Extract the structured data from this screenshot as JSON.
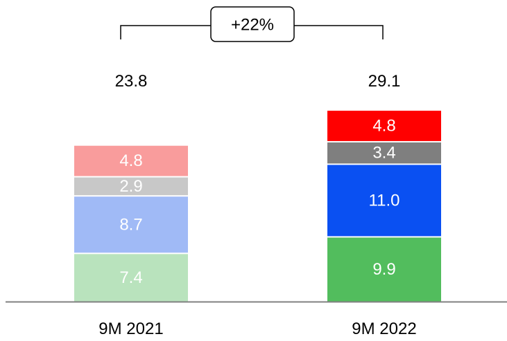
{
  "chart_data": {
    "type": "bar",
    "stacked": true,
    "categories": [
      "9M 2021",
      "9M 2022"
    ],
    "totals": [
      "23.8",
      "29.1"
    ],
    "stacks": [
      {
        "category": "9M 2021",
        "segments": [
          {
            "value": 7.4,
            "label": "7.4",
            "color": "#b9e3bd"
          },
          {
            "value": 8.7,
            "label": "8.7",
            "color": "#a0baf6"
          },
          {
            "value": 2.9,
            "label": "2.9",
            "color": "#c8c8c8"
          },
          {
            "value": 4.8,
            "label": "4.8",
            "color": "#f99c9c"
          }
        ]
      },
      {
        "category": "9M 2022",
        "segments": [
          {
            "value": 9.9,
            "label": "9.9",
            "color": "#52bd5d"
          },
          {
            "value": 11.0,
            "label": "11.0",
            "color": "#0a50f2"
          },
          {
            "value": 3.4,
            "label": "3.4",
            "color": "#7f7f7f"
          },
          {
            "value": 4.8,
            "label": "4.8",
            "color": "#ff0000"
          }
        ]
      }
    ],
    "growth_label": "+22%",
    "baseline_color": "#808080"
  }
}
